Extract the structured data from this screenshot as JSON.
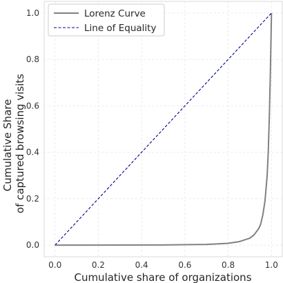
{
  "chart_data": {
    "type": "line",
    "title": "",
    "xlabel": "Cumulative share of organizations",
    "ylabel_lines": [
      "Cumulative Share",
      "of captured browsing visits"
    ],
    "xlim": [
      -0.05,
      1.05
    ],
    "ylim": [
      -0.05,
      1.05
    ],
    "x_ticks": [
      0.0,
      0.2,
      0.4,
      0.6,
      0.8,
      1.0
    ],
    "x_tick_labels": [
      "0.0",
      "0.2",
      "0.4",
      "0.6",
      "0.8",
      "1.0"
    ],
    "y_ticks": [
      0.0,
      0.2,
      0.4,
      0.6,
      0.8,
      1.0
    ],
    "y_tick_labels": [
      "0.0",
      "0.2",
      "0.4",
      "0.6",
      "0.8",
      "1.0"
    ],
    "grid": true,
    "legend_position": "top-left",
    "series": [
      {
        "name": "Lorenz Curve",
        "color": "#808080",
        "line_style": "solid",
        "x": [
          0.0,
          0.5,
          0.7,
          0.8,
          0.85,
          0.9,
          0.92,
          0.94,
          0.95,
          0.96,
          0.97,
          0.98,
          0.985,
          0.99,
          0.995,
          1.0
        ],
        "y": [
          0.0,
          0.001,
          0.003,
          0.008,
          0.015,
          0.03,
          0.045,
          0.07,
          0.09,
          0.13,
          0.19,
          0.3,
          0.4,
          0.55,
          0.75,
          1.0
        ]
      },
      {
        "name": "Line of Equality",
        "color": "#00008b",
        "line_style": "dashed",
        "x": [
          0.0,
          1.0
        ],
        "y": [
          0.0,
          1.0
        ]
      }
    ]
  }
}
